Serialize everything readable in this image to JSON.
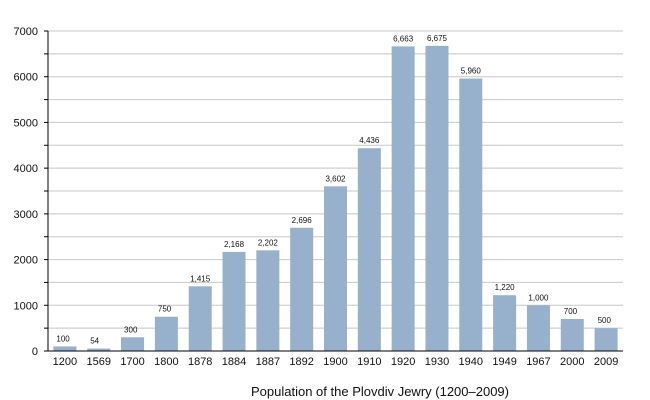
{
  "chart_data": {
    "type": "bar",
    "title": "Population of the Plovdiv Jewry (1200–2009)",
    "xlabel": "",
    "ylabel": "",
    "categories": [
      "1200",
      "1569",
      "1700",
      "1800",
      "1878",
      "1884",
      "1887",
      "1892",
      "1900",
      "1910",
      "1920",
      "1930",
      "1940",
      "1949",
      "1967",
      "2000",
      "2009"
    ],
    "values": [
      100,
      54,
      300,
      750,
      1415,
      2168,
      2202,
      2696,
      3602,
      4436,
      6663,
      6675,
      5960,
      1220,
      1000,
      700,
      500
    ],
    "data_labels": [
      "100",
      "54",
      "300",
      "750",
      "1,415",
      "2,168",
      "2,202",
      "2,696",
      "3,602",
      "4,436",
      "6,663",
      "6,675",
      "5,960",
      "1,220",
      "1,000",
      "700",
      "500"
    ],
    "ylim": [
      0,
      7000
    ],
    "yticks": [
      "0",
      "1000",
      "2000",
      "3000",
      "4000",
      "5000",
      "6000",
      "7000"
    ],
    "grid": true,
    "grid_step": 500,
    "legend": "none",
    "colors": {
      "bar": "#97b0cb",
      "grid": "#c8c8c8",
      "axis": "#000000"
    }
  }
}
